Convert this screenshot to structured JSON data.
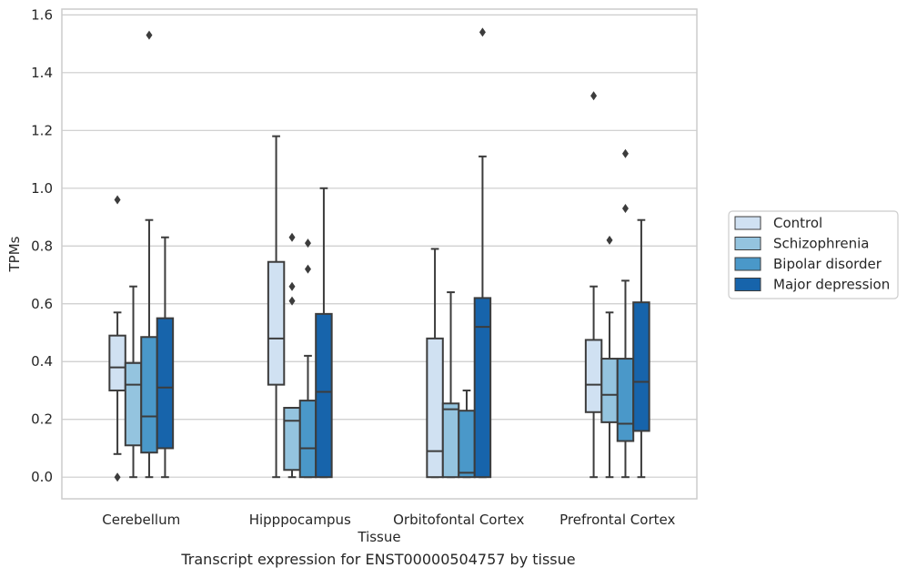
{
  "caption": "Transcript expression for ENST00000504757 by tissue",
  "chart_data": {
    "type": "box",
    "title": "",
    "xlabel": "Tissue",
    "ylabel": "TPMs",
    "ylim": [
      -0.075,
      1.62
    ],
    "yticks": [
      0.0,
      0.2,
      0.4,
      0.6,
      0.8,
      1.0,
      1.2,
      1.4,
      1.6
    ],
    "ytick_labels": [
      "0.0",
      "0.2",
      "0.4",
      "0.6",
      "0.8",
      "1.0",
      "1.2",
      "1.4",
      "1.6"
    ],
    "grid": "horizontal",
    "legend_position": "right",
    "categories": [
      "Cerebellum",
      "Hipppocampus",
      "Orbitofontal Cortex",
      "Prefrontal Cortex"
    ],
    "series": [
      {
        "name": "Control",
        "color": "#d0e1f2",
        "boxes": [
          {
            "whislo": 0.08,
            "q1": 0.3,
            "med": 0.38,
            "q3": 0.49,
            "whishi": 0.57,
            "fliers": [
              0.96,
              0.0
            ]
          },
          {
            "whislo": 0.0,
            "q1": 0.32,
            "med": 0.48,
            "q3": 0.745,
            "whishi": 1.18,
            "fliers": []
          },
          {
            "whislo": 0.0,
            "q1": 0.0,
            "med": 0.09,
            "q3": 0.48,
            "whishi": 0.79,
            "fliers": []
          },
          {
            "whislo": 0.0,
            "q1": 0.225,
            "med": 0.32,
            "q3": 0.475,
            "whishi": 0.66,
            "fliers": [
              1.32
            ]
          }
        ]
      },
      {
        "name": "Schizophrenia",
        "color": "#94c4df",
        "boxes": [
          {
            "whislo": 0.0,
            "q1": 0.11,
            "med": 0.32,
            "q3": 0.395,
            "whishi": 0.66,
            "fliers": []
          },
          {
            "whislo": 0.0,
            "q1": 0.025,
            "med": 0.195,
            "q3": 0.24,
            "whishi": 0.24,
            "fliers": [
              0.83,
              0.66,
              0.61
            ]
          },
          {
            "whislo": 0.0,
            "q1": 0.0,
            "med": 0.235,
            "q3": 0.255,
            "whishi": 0.64,
            "fliers": []
          },
          {
            "whislo": 0.0,
            "q1": 0.19,
            "med": 0.285,
            "q3": 0.41,
            "whishi": 0.57,
            "fliers": [
              0.82
            ]
          }
        ]
      },
      {
        "name": "Bipolar disorder",
        "color": "#4a98c9",
        "boxes": [
          {
            "whislo": 0.0,
            "q1": 0.085,
            "med": 0.21,
            "q3": 0.485,
            "whishi": 0.89,
            "fliers": [
              1.53
            ]
          },
          {
            "whislo": 0.0,
            "q1": 0.0,
            "med": 0.1,
            "q3": 0.265,
            "whishi": 0.42,
            "fliers": [
              0.81,
              0.72
            ]
          },
          {
            "whislo": 0.0,
            "q1": 0.0,
            "med": 0.015,
            "q3": 0.23,
            "whishi": 0.3,
            "fliers": []
          },
          {
            "whislo": 0.0,
            "q1": 0.125,
            "med": 0.185,
            "q3": 0.41,
            "whishi": 0.68,
            "fliers": [
              1.12,
              0.93
            ]
          }
        ]
      },
      {
        "name": "Major depression",
        "color": "#1764ab",
        "boxes": [
          {
            "whislo": 0.0,
            "q1": 0.1,
            "med": 0.31,
            "q3": 0.55,
            "whishi": 0.83,
            "fliers": []
          },
          {
            "whislo": 0.0,
            "q1": 0.0,
            "med": 0.295,
            "q3": 0.565,
            "whishi": 1.0,
            "fliers": []
          },
          {
            "whislo": 0.0,
            "q1": 0.0,
            "med": 0.52,
            "q3": 0.62,
            "whishi": 1.11,
            "fliers": [
              1.54
            ]
          },
          {
            "whislo": 0.0,
            "q1": 0.16,
            "med": 0.33,
            "q3": 0.605,
            "whishi": 0.89,
            "fliers": []
          }
        ]
      }
    ]
  }
}
